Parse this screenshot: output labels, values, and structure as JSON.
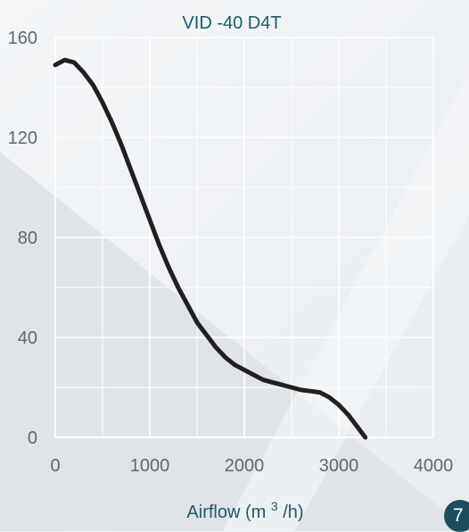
{
  "chart_data": {
    "type": "line",
    "title": "VID -40 D4T",
    "xlabel": "Airflow (m",
    "xlabel_sup": "3",
    "xlabel_end": "/h)",
    "ylabel": "",
    "xlim": [
      0,
      4000
    ],
    "ylim": [
      0,
      160
    ],
    "xticks": [
      0,
      1000,
      2000,
      3000,
      4000
    ],
    "yticks": [
      0,
      40,
      80,
      120,
      160
    ],
    "grid": true,
    "colors": {
      "line": "#231f20",
      "title": "#1d5a6b",
      "axis_text": "#5a6a73",
      "grid": "#ffffff"
    },
    "series": [
      {
        "x": [
          0,
          100,
          200,
          300,
          400,
          500,
          600,
          700,
          800,
          900,
          1000,
          1100,
          1200,
          1300,
          1400,
          1500,
          1600,
          1700,
          1800,
          1900,
          2000,
          2100,
          2200,
          2300,
          2400,
          2500,
          2600,
          2700,
          2800,
          2900,
          3000,
          3100,
          3200,
          3280
        ],
        "y": [
          149,
          151,
          150,
          146,
          141,
          134,
          126,
          117,
          107,
          97,
          87,
          77,
          68,
          60,
          53,
          46,
          41,
          36,
          32,
          29,
          27,
          25,
          23,
          22,
          21,
          20,
          19,
          18.5,
          18,
          16,
          13,
          9,
          4,
          0
        ]
      }
    ]
  },
  "page_number": "7"
}
